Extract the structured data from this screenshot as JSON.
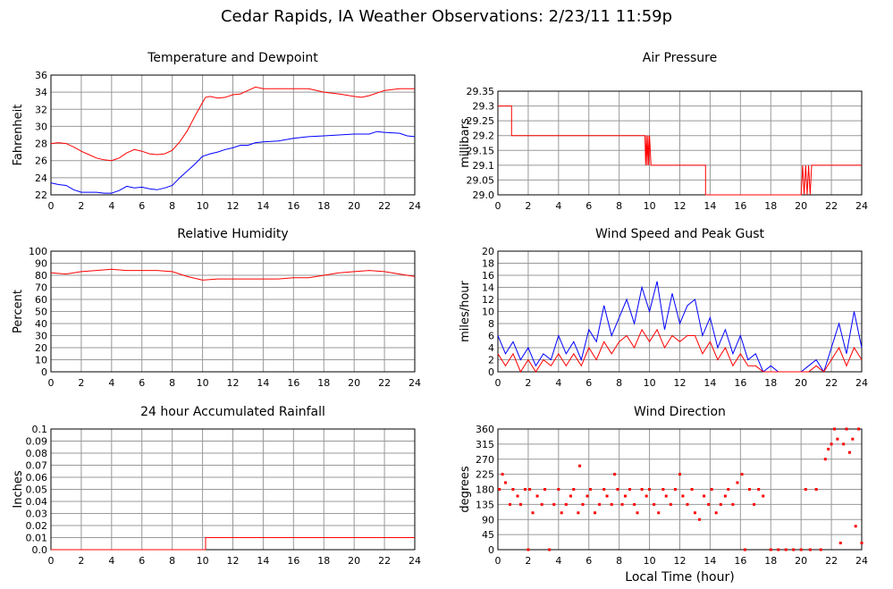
{
  "page": {
    "title": "Cedar Rapids, IA Weather Observations: 2/23/11 11:59p",
    "x_axis_label": "Local Time (hour)"
  },
  "colors": {
    "red": "#ff0000",
    "blue": "#0000ff",
    "grid": "#999999"
  },
  "chart_data": [
    {
      "id": "temp",
      "type": "line",
      "title": "Temperature and Dewpoint",
      "ylabel": "Fahrenheit",
      "xlim": [
        0,
        24
      ],
      "ylim": [
        22,
        36
      ],
      "xticks": [
        0,
        2,
        4,
        6,
        8,
        10,
        12,
        14,
        16,
        18,
        20,
        22,
        24
      ],
      "yticks": [
        22,
        24,
        26,
        28,
        30,
        32,
        34,
        36
      ],
      "grid": true,
      "series": [
        {
          "color": "#ff0000",
          "x": [
            0,
            0.5,
            1,
            1.5,
            2,
            2.5,
            3,
            3.5,
            4,
            4.5,
            5,
            5.5,
            6,
            6.5,
            7,
            7.5,
            8,
            8.5,
            9,
            9.5,
            10,
            10.2,
            10.5,
            11,
            11.5,
            12,
            12.5,
            13,
            13.5,
            14,
            15,
            16,
            17,
            18,
            19,
            20,
            20.5,
            21,
            22,
            23,
            24
          ],
          "y": [
            28.0,
            28.1,
            28.0,
            27.6,
            27.1,
            26.7,
            26.3,
            26.1,
            26.0,
            26.3,
            26.9,
            27.3,
            27.1,
            26.8,
            26.7,
            26.8,
            27.2,
            28.2,
            29.5,
            31.2,
            32.8,
            33.4,
            33.5,
            33.3,
            33.4,
            33.7,
            33.8,
            34.2,
            34.6,
            34.4,
            34.4,
            34.4,
            34.4,
            34.0,
            33.8,
            33.5,
            33.4,
            33.6,
            34.2,
            34.4,
            34.4
          ]
        },
        {
          "color": "#0000ff",
          "x": [
            0,
            0.5,
            1,
            1.5,
            2,
            2.5,
            3,
            3.5,
            4,
            4.5,
            5,
            5.5,
            6,
            6.5,
            7,
            7.5,
            8,
            8.5,
            9,
            9.5,
            10,
            10.5,
            11,
            11.5,
            12,
            12.5,
            13,
            13.5,
            14,
            15,
            16,
            17,
            18,
            19,
            20,
            21,
            21.5,
            22,
            23,
            23.5,
            24
          ],
          "y": [
            23.4,
            23.2,
            23.1,
            22.6,
            22.3,
            22.3,
            22.3,
            22.2,
            22.2,
            22.5,
            23.0,
            22.8,
            22.9,
            22.7,
            22.6,
            22.8,
            23.1,
            24.0,
            24.8,
            25.6,
            26.5,
            26.8,
            27.0,
            27.3,
            27.5,
            27.8,
            27.8,
            28.1,
            28.2,
            28.3,
            28.6,
            28.8,
            28.9,
            29.0,
            29.1,
            29.1,
            29.4,
            29.3,
            29.2,
            28.9,
            28.8
          ]
        }
      ]
    },
    {
      "id": "pressure",
      "type": "line",
      "title": "Air Pressure",
      "ylabel": "millibars",
      "xlim": [
        0,
        24
      ],
      "ylim": [
        29.0,
        29.35
      ],
      "xticks": [
        0,
        2,
        4,
        6,
        8,
        10,
        12,
        14,
        16,
        18,
        20,
        22,
        24
      ],
      "yticks": [
        29.0,
        29.05,
        29.1,
        29.15,
        29.2,
        29.25,
        29.3,
        29.35
      ],
      "ytick_labels": [
        "29.0",
        "29.05",
        "29.1",
        "29.15",
        "29.2",
        "29.25",
        "29.3",
        "29.35"
      ],
      "grid": true,
      "series": [
        {
          "color": "#ff0000",
          "x": [
            0,
            0.9,
            0.9,
            9.7,
            9.75,
            9.8,
            9.85,
            9.9,
            9.95,
            10.0,
            10.1,
            13.7,
            13.7,
            20.0,
            20.1,
            20.2,
            20.3,
            20.4,
            20.5,
            20.6,
            20.7,
            24
          ],
          "y": [
            29.3,
            29.3,
            29.2,
            29.2,
            29.1,
            29.2,
            29.1,
            29.2,
            29.1,
            29.2,
            29.1,
            29.1,
            29.0,
            29.0,
            29.1,
            29.0,
            29.1,
            29.0,
            29.1,
            29.0,
            29.1,
            29.1
          ]
        }
      ]
    },
    {
      "id": "humidity",
      "type": "line",
      "title": "Relative Humidity",
      "ylabel": "Percent",
      "xlim": [
        0,
        24
      ],
      "ylim": [
        0,
        100
      ],
      "xticks": [
        0,
        2,
        4,
        6,
        8,
        10,
        12,
        14,
        16,
        18,
        20,
        22,
        24
      ],
      "yticks": [
        0,
        10,
        20,
        30,
        40,
        50,
        60,
        70,
        80,
        90,
        100
      ],
      "grid": true,
      "series": [
        {
          "color": "#ff0000",
          "x": [
            0,
            1,
            2,
            3,
            4,
            5,
            6,
            7,
            8,
            9,
            10,
            11,
            12,
            13,
            14,
            15,
            16,
            17,
            18,
            19,
            20,
            21,
            22,
            23,
            24
          ],
          "y": [
            82,
            81,
            83,
            84,
            85,
            84,
            84,
            84,
            83,
            79,
            76,
            77,
            77,
            77,
            77,
            77,
            78,
            78,
            80,
            82,
            83,
            84,
            83,
            81,
            79
          ]
        }
      ]
    },
    {
      "id": "wind",
      "type": "line",
      "title": "Wind Speed and Peak Gust",
      "ylabel": "miles/hour",
      "xlim": [
        0,
        24
      ],
      "ylim": [
        0,
        20
      ],
      "xticks": [
        0,
        2,
        4,
        6,
        8,
        10,
        12,
        14,
        16,
        18,
        20,
        22,
        24
      ],
      "yticks": [
        0,
        2,
        4,
        6,
        8,
        10,
        12,
        14,
        16,
        18,
        20
      ],
      "grid": true,
      "series": [
        {
          "color": "#0000ff",
          "x": [
            0,
            0.5,
            1,
            1.5,
            2,
            2.5,
            3,
            3.5,
            4,
            4.5,
            5,
            5.5,
            6,
            6.5,
            7,
            7.5,
            8,
            8.5,
            9,
            9.5,
            10,
            10.5,
            11,
            11.5,
            12,
            12.5,
            13,
            13.5,
            14,
            14.5,
            15,
            15.5,
            16,
            16.5,
            17,
            17.5,
            18,
            18.5,
            19,
            19.5,
            20,
            20.5,
            21,
            21.5,
            22,
            22.5,
            23,
            23.5,
            24
          ],
          "y": [
            6,
            3,
            5,
            2,
            4,
            1,
            3,
            2,
            6,
            3,
            5,
            2,
            7,
            5,
            11,
            6,
            9,
            12,
            8,
            14,
            10,
            15,
            7,
            13,
            8,
            11,
            12,
            6,
            9,
            4,
            7,
            3,
            6,
            2,
            3,
            0,
            1,
            0,
            0,
            0,
            0,
            1,
            2,
            0,
            4,
            8,
            3,
            10,
            4
          ]
        },
        {
          "color": "#ff0000",
          "x": [
            0,
            0.5,
            1,
            1.5,
            2,
            2.5,
            3,
            3.5,
            4,
            4.5,
            5,
            5.5,
            6,
            6.5,
            7,
            7.5,
            8,
            8.5,
            9,
            9.5,
            10,
            10.5,
            11,
            11.5,
            12,
            12.5,
            13,
            13.5,
            14,
            14.5,
            15,
            15.5,
            16,
            16.5,
            17,
            17.5,
            18,
            18.5,
            19,
            19.5,
            20,
            20.5,
            21,
            21.5,
            22,
            22.5,
            23,
            23.5,
            24
          ],
          "y": [
            3,
            1,
            3,
            0,
            2,
            0,
            2,
            1,
            3,
            1,
            3,
            1,
            4,
            2,
            5,
            3,
            5,
            6,
            4,
            7,
            5,
            7,
            4,
            6,
            5,
            6,
            6,
            3,
            5,
            2,
            4,
            1,
            3,
            1,
            1,
            0,
            0,
            0,
            0,
            0,
            0,
            0,
            1,
            0,
            2,
            4,
            1,
            4,
            2
          ]
        }
      ]
    },
    {
      "id": "rain",
      "type": "line",
      "title": "24 hour Accumulated Rainfall",
      "ylabel": "Inches",
      "xlim": [
        0,
        24
      ],
      "ylim": [
        0,
        0.1
      ],
      "xticks": [
        0,
        2,
        4,
        6,
        8,
        10,
        12,
        14,
        16,
        18,
        20,
        22,
        24
      ],
      "yticks": [
        0,
        0.01,
        0.02,
        0.03,
        0.04,
        0.05,
        0.06,
        0.07,
        0.08,
        0.09,
        0.1
      ],
      "ytick_labels": [
        "0.0",
        "0.01",
        "0.02",
        "0.03",
        "0.04",
        "0.05",
        "0.06",
        "0.07",
        "0.08",
        "0.09",
        "0.1"
      ],
      "grid": true,
      "series": [
        {
          "color": "#ff0000",
          "x": [
            0,
            10.2,
            10.2,
            24
          ],
          "y": [
            0,
            0,
            0.01,
            0.01
          ]
        }
      ]
    },
    {
      "id": "direction",
      "type": "scatter",
      "title": "Wind Direction",
      "ylabel": "degrees",
      "xlabel": "Local Time (hour)",
      "xlim": [
        0,
        24
      ],
      "ylim": [
        0,
        360
      ],
      "xticks": [
        0,
        2,
        4,
        6,
        8,
        10,
        12,
        14,
        16,
        18,
        20,
        22,
        24
      ],
      "yticks": [
        0,
        45,
        90,
        135,
        180,
        225,
        270,
        315,
        360
      ],
      "grid": true,
      "series": [
        {
          "color": "#ff0000",
          "x": [
            0.1,
            0.3,
            0.5,
            0.8,
            1.0,
            1.3,
            1.5,
            1.8,
            2.0,
            2.1,
            2.3,
            2.6,
            2.9,
            3.1,
            3.4,
            3.7,
            4.0,
            4.2,
            4.5,
            4.8,
            5.0,
            5.3,
            5.4,
            5.6,
            5.9,
            6.1,
            6.4,
            6.7,
            7.0,
            7.2,
            7.5,
            7.7,
            7.9,
            8.2,
            8.4,
            8.7,
            9.0,
            9.2,
            9.5,
            9.8,
            10.0,
            10.3,
            10.6,
            10.9,
            11.1,
            11.4,
            11.7,
            12.0,
            12.2,
            12.5,
            12.8,
            13.0,
            13.3,
            13.6,
            13.9,
            14.1,
            14.4,
            14.7,
            15.0,
            15.2,
            15.5,
            15.8,
            16.1,
            16.3,
            16.6,
            16.9,
            17.2,
            17.5,
            18.0,
            18.5,
            19.0,
            19.5,
            20.0,
            20.3,
            20.6,
            21.0,
            21.3,
            21.6,
            21.8,
            22.0,
            22.2,
            22.4,
            22.6,
            22.8,
            23.0,
            23.2,
            23.4,
            23.6,
            23.8,
            24.0
          ],
          "y": [
            180,
            225,
            200,
            135,
            180,
            160,
            135,
            180,
            0,
            180,
            110,
            160,
            135,
            180,
            0,
            135,
            180,
            110,
            135,
            160,
            180,
            110,
            250,
            135,
            160,
            180,
            110,
            135,
            180,
            160,
            135,
            225,
            180,
            135,
            160,
            180,
            135,
            110,
            180,
            160,
            180,
            135,
            110,
            180,
            160,
            135,
            180,
            225,
            160,
            135,
            180,
            110,
            90,
            160,
            135,
            180,
            110,
            135,
            160,
            180,
            135,
            200,
            225,
            0,
            180,
            135,
            180,
            160,
            0,
            0,
            0,
            0,
            0,
            180,
            0,
            180,
            0,
            270,
            300,
            315,
            360,
            330,
            20,
            315,
            360,
            290,
            330,
            70,
            360,
            20
          ]
        }
      ]
    }
  ]
}
